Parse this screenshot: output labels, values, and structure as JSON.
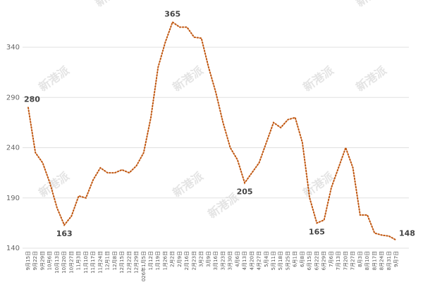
{
  "watermark": "新港派",
  "chart_data": {
    "type": "line",
    "categories": [
      "9月15日",
      "9月22日",
      "9月29日",
      "10月6日",
      "10月13日",
      "10月20日",
      "10月27日",
      "11月3日",
      "11月10日",
      "11月17日",
      "11月24日",
      "12月1日",
      "12月8日",
      "12月15日",
      "12月22日",
      "12月29日",
      "2026年1月5日",
      "1月12日",
      "1月19日",
      "1月26日",
      "2月2日",
      "2月9日",
      "2月16日",
      "2月23日",
      "3月2日",
      "3月9日",
      "3月16日",
      "3月23日",
      "3月30日",
      "4月6日",
      "4月13日",
      "4月20日",
      "4月27日",
      "5月4日",
      "5月11日",
      "5月18日",
      "5月25日",
      "6月1日",
      "6月8日",
      "6月15日",
      "6月22日",
      "6月29日",
      "7月6日",
      "7月13日",
      "7月20日",
      "7月27日",
      "8月3日",
      "8月10日",
      "8月17日",
      "8月24日",
      "8月31日",
      "9月7日"
    ],
    "series": [
      {
        "name": "price",
        "color": "#c0560f",
        "values": [
          280,
          235,
          225,
          205,
          180,
          163,
          172,
          192,
          190,
          208,
          220,
          215,
          215,
          218,
          215,
          222,
          235,
          270,
          320,
          345,
          365,
          360,
          360,
          350,
          349,
          320,
          295,
          265,
          240,
          228,
          205,
          215,
          225,
          245,
          265,
          260,
          268,
          270,
          245,
          190,
          165,
          168,
          200,
          220,
          240,
          220,
          173,
          173,
          155,
          153,
          152,
          148
        ],
        "value_labels": {
          "0": "280",
          "5": "163",
          "20": "365",
          "30": "205",
          "40": "165",
          "51": "148"
        }
      }
    ],
    "ylim": [
      140,
      360
    ],
    "yticks": [
      140,
      190,
      240,
      290,
      340
    ],
    "grid": true
  }
}
